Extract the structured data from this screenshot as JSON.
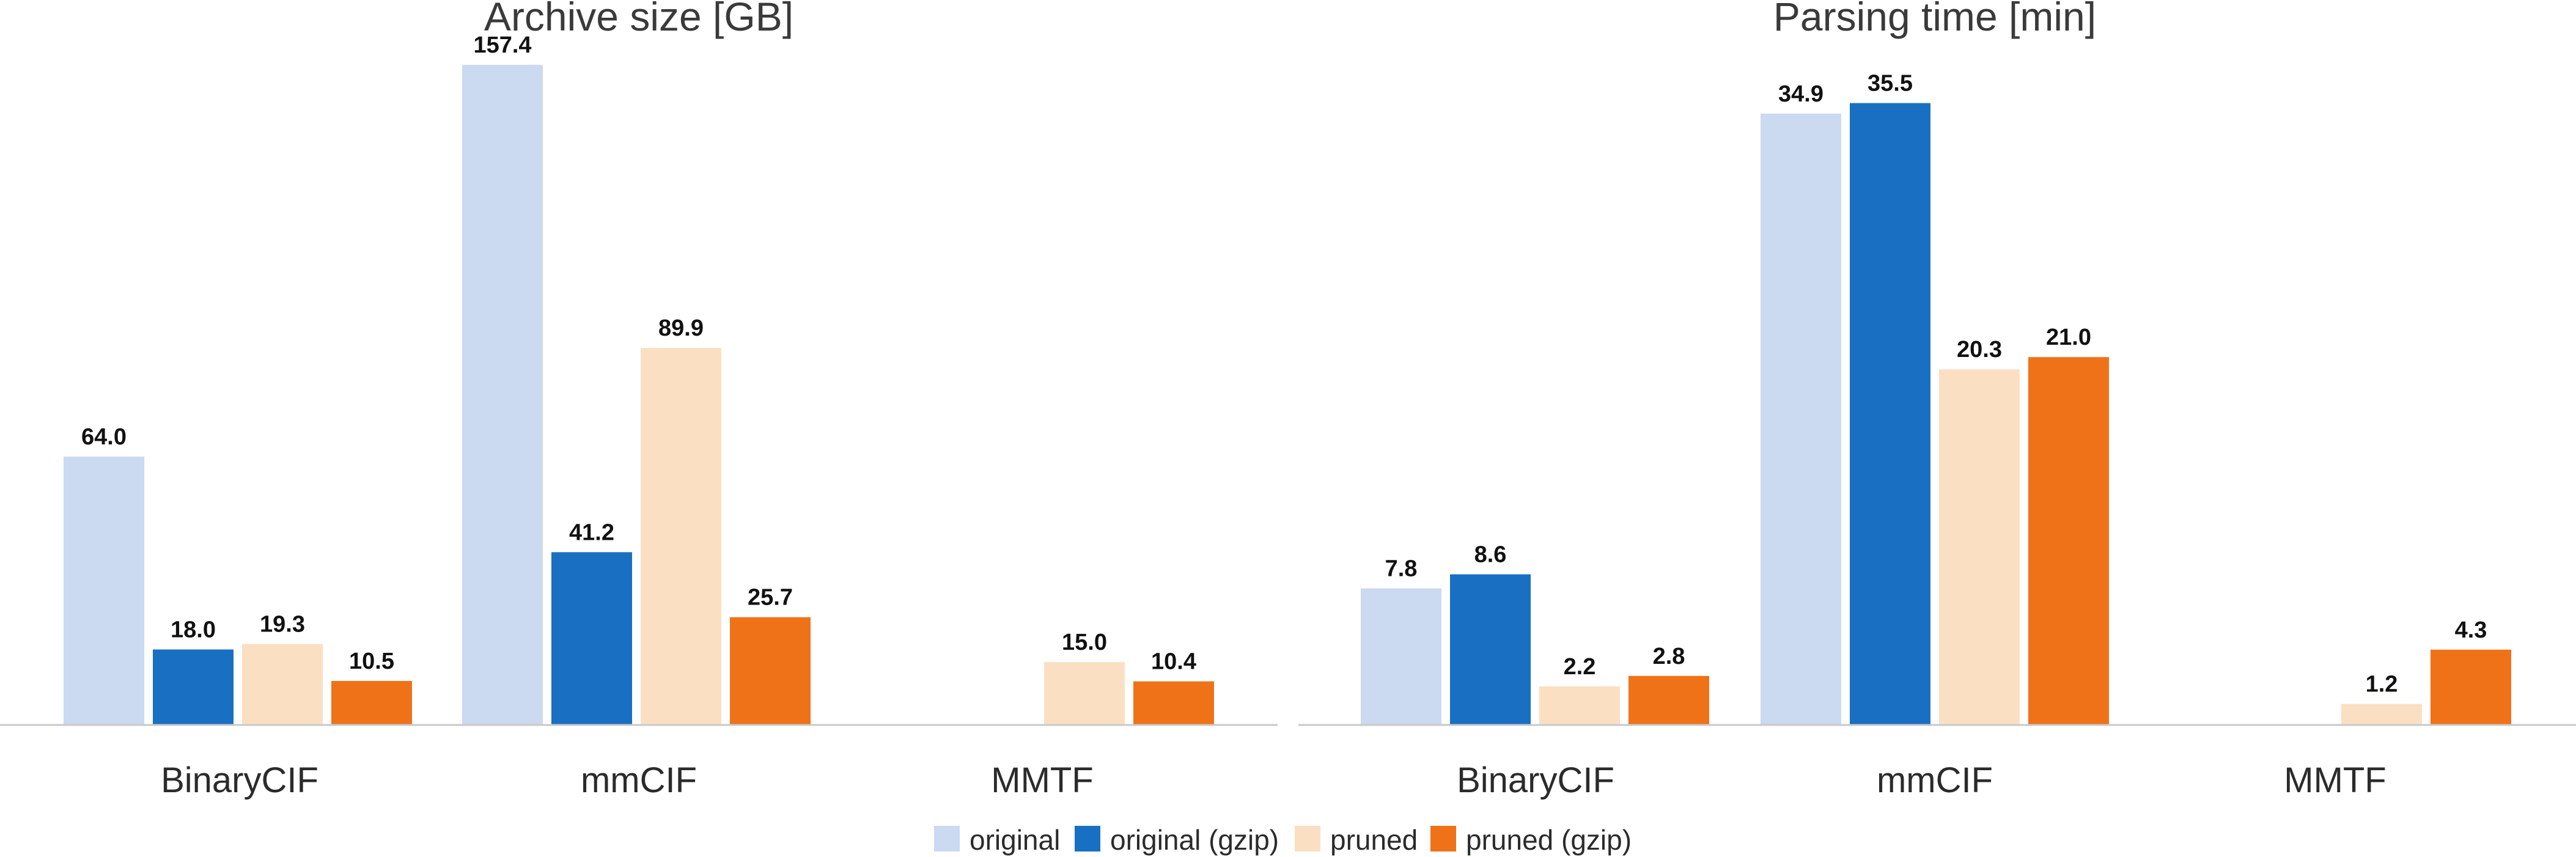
{
  "chart_data": [
    {
      "type": "bar",
      "title": "Archive size [GB]",
      "categories": [
        "BinaryCIF",
        "mmCIF",
        "MMTF"
      ],
      "series": [
        {
          "name": "original",
          "values": [
            64.0,
            157.4,
            null
          ]
        },
        {
          "name": "original (gzip)",
          "values": [
            18.0,
            41.2,
            null
          ]
        },
        {
          "name": "pruned",
          "values": [
            19.3,
            89.9,
            15.0
          ]
        },
        {
          "name": "pruned (gzip)",
          "values": [
            10.5,
            25.7,
            10.4
          ]
        }
      ],
      "value_labels": [
        [
          "64.0",
          "157.4",
          null
        ],
        [
          "18.0",
          "41.2",
          null
        ],
        [
          "19.3",
          "89.9",
          "15.0"
        ],
        [
          "10.5",
          "25.7",
          "10.4"
        ]
      ],
      "ylim": [
        0,
        165
      ],
      "grid": false,
      "legend": "bottom-center"
    },
    {
      "type": "bar",
      "title": "Parsing time [min]",
      "categories": [
        "BinaryCIF",
        "mmCIF",
        "MMTF"
      ],
      "series": [
        {
          "name": "original",
          "values": [
            7.8,
            34.9,
            null
          ]
        },
        {
          "name": "original (gzip)",
          "values": [
            8.6,
            35.5,
            null
          ]
        },
        {
          "name": "pruned",
          "values": [
            2.2,
            20.3,
            1.2
          ]
        },
        {
          "name": "pruned (gzip)",
          "values": [
            2.8,
            21.0,
            4.3
          ]
        }
      ],
      "value_labels": [
        [
          "7.8",
          "34.9",
          null
        ],
        [
          "8.6",
          "35.5",
          null
        ],
        [
          "2.2",
          "20.3",
          "1.2"
        ],
        [
          "2.8",
          "21.0",
          "4.3"
        ]
      ],
      "ylim": [
        0,
        39.5
      ],
      "grid": false,
      "legend": "bottom-center"
    }
  ],
  "legend": {
    "items": [
      {
        "label": "original",
        "color": "#cbd9f1"
      },
      {
        "label": "original (gzip)",
        "color": "#1970c2"
      },
      {
        "label": "pruned",
        "color": "#fbdfc2"
      },
      {
        "label": "pruned (gzip)",
        "color": "#ef7219"
      }
    ]
  }
}
